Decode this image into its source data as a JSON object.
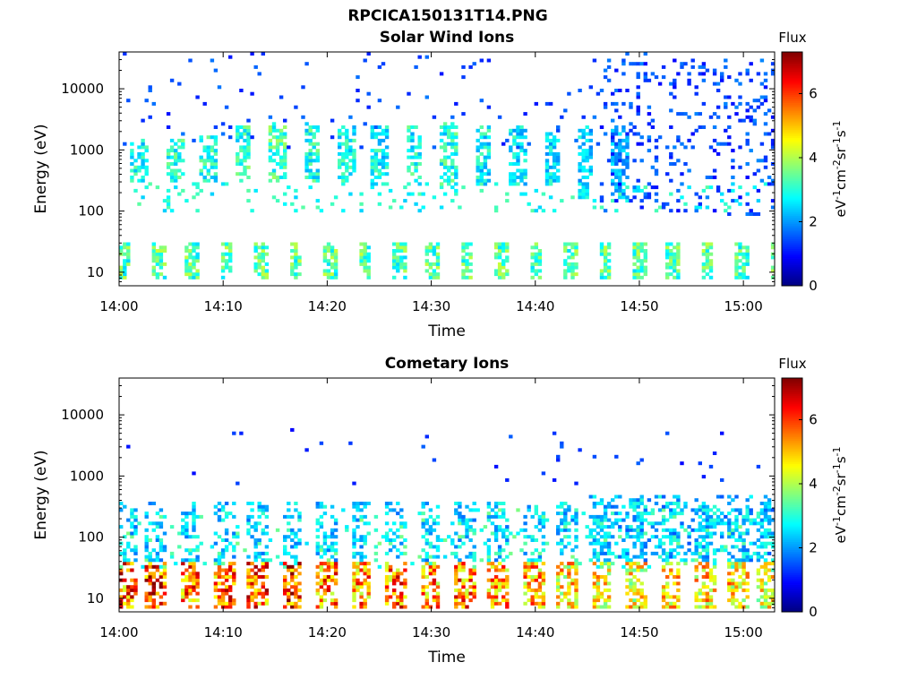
{
  "figure_title": "RPCICA150131T14.PNG",
  "chart_data": [
    {
      "type": "heatmap",
      "title": "Solar Wind Ions",
      "xlabel": "Time",
      "ylabel": "Energy (eV)",
      "y_scale": "log",
      "ylim": [
        6,
        40000
      ],
      "xlim": [
        "14:00",
        "15:03"
      ],
      "x_ticks": [
        "14:00",
        "14:10",
        "14:20",
        "14:30",
        "14:40",
        "14:50",
        "15:00"
      ],
      "y_ticks": [
        "10",
        "100",
        "1000",
        "10000"
      ],
      "colorbar": {
        "label": "Flux",
        "units": "eV-1cm-2sr-1s-1",
        "range": [
          0,
          7.3
        ],
        "ticks": [
          "0",
          "2",
          "4",
          "6"
        ]
      },
      "bursts": [
        {
          "t": 1.8,
          "e_lo": 300,
          "e_hi": 1500,
          "level": 3.0
        },
        {
          "t": 5.2,
          "e_lo": 300,
          "e_hi": 1500,
          "level": 3.2
        },
        {
          "t": 8.4,
          "e_lo": 300,
          "e_hi": 1800,
          "level": 3.0
        },
        {
          "t": 11.7,
          "e_lo": 300,
          "e_hi": 2500,
          "level": 3.2
        },
        {
          "t": 15.0,
          "e_lo": 300,
          "e_hi": 3000,
          "level": 3.3
        },
        {
          "t": 18.3,
          "e_lo": 300,
          "e_hi": 3000,
          "level": 3.1
        },
        {
          "t": 21.6,
          "e_lo": 300,
          "e_hi": 2500,
          "level": 2.9
        },
        {
          "t": 24.9,
          "e_lo": 250,
          "e_hi": 2500,
          "level": 2.9
        },
        {
          "t": 28.2,
          "e_lo": 250,
          "e_hi": 2500,
          "level": 3.0
        },
        {
          "t": 31.5,
          "e_lo": 250,
          "e_hi": 3000,
          "level": 3.1
        },
        {
          "t": 34.8,
          "e_lo": 250,
          "e_hi": 2500,
          "level": 2.9
        },
        {
          "t": 38.1,
          "e_lo": 250,
          "e_hi": 2500,
          "level": 2.8
        },
        {
          "t": 41.4,
          "e_lo": 250,
          "e_hi": 2000,
          "level": 2.7
        },
        {
          "t": 44.6,
          "e_lo": 150,
          "e_hi": 2500,
          "level": 2.5
        },
        {
          "t": 47.9,
          "e_lo": 150,
          "e_hi": 2500,
          "level": 2.2
        }
      ],
      "low_energy_bands": [
        {
          "e_lo": 8,
          "e_hi": 30,
          "level": 3.5
        }
      ],
      "pulse_period_min": 3.3
    },
    {
      "type": "heatmap",
      "title": "Cometary Ions",
      "xlabel": "Time",
      "ylabel": "Energy (eV)",
      "y_scale": "log",
      "ylim": [
        6,
        40000
      ],
      "xlim": [
        "14:00",
        "15:03"
      ],
      "x_ticks": [
        "14:00",
        "14:10",
        "14:20",
        "14:30",
        "14:40",
        "14:50",
        "15:00"
      ],
      "y_ticks": [
        "10",
        "100",
        "1000",
        "10000"
      ],
      "colorbar": {
        "label": "Flux",
        "units": "eV-1cm-2sr-1s-1",
        "range": [
          0,
          7.3
        ],
        "ticks": [
          "0",
          "2",
          "4",
          "6"
        ]
      },
      "bursts": [
        {
          "t": 0.5,
          "e_lo": 7,
          "e_hi": 40,
          "level": 6.0
        },
        {
          "t": 3.3,
          "e_lo": 7,
          "e_hi": 40,
          "level": 6.2
        },
        {
          "t": 6.6,
          "e_lo": 7,
          "e_hi": 40,
          "level": 5.8
        },
        {
          "t": 9.9,
          "e_lo": 7,
          "e_hi": 40,
          "level": 5.9
        },
        {
          "t": 13.2,
          "e_lo": 7,
          "e_hi": 40,
          "level": 6.0
        },
        {
          "t": 16.5,
          "e_lo": 7,
          "e_hi": 40,
          "level": 6.3
        },
        {
          "t": 19.8,
          "e_lo": 7,
          "e_hi": 40,
          "level": 5.8
        },
        {
          "t": 23.1,
          "e_lo": 7,
          "e_hi": 40,
          "level": 5.7
        },
        {
          "t": 26.4,
          "e_lo": 7,
          "e_hi": 40,
          "level": 5.9
        },
        {
          "t": 29.7,
          "e_lo": 7,
          "e_hi": 40,
          "level": 5.6
        },
        {
          "t": 33.0,
          "e_lo": 7,
          "e_hi": 40,
          "level": 5.8
        },
        {
          "t": 36.3,
          "e_lo": 7,
          "e_hi": 40,
          "level": 5.5
        },
        {
          "t": 39.6,
          "e_lo": 7,
          "e_hi": 40,
          "level": 5.3
        },
        {
          "t": 42.9,
          "e_lo": 7,
          "e_hi": 40,
          "level": 5.0
        },
        {
          "t": 46.2,
          "e_lo": 7,
          "e_hi": 40,
          "level": 4.8
        },
        {
          "t": 49.5,
          "e_lo": 7,
          "e_hi": 40,
          "level": 4.8
        },
        {
          "t": 52.8,
          "e_lo": 7,
          "e_hi": 40,
          "level": 4.9
        },
        {
          "t": 56.1,
          "e_lo": 7,
          "e_hi": 40,
          "level": 5.0
        },
        {
          "t": 59.4,
          "e_lo": 7,
          "e_hi": 40,
          "level": 5.1
        },
        {
          "t": 62.0,
          "e_lo": 7,
          "e_hi": 40,
          "level": 4.6
        }
      ],
      "high_energy_spot": {
        "t": 50.0,
        "e": 2000,
        "level": 1.2
      },
      "pulse_period_min": 3.3
    }
  ]
}
